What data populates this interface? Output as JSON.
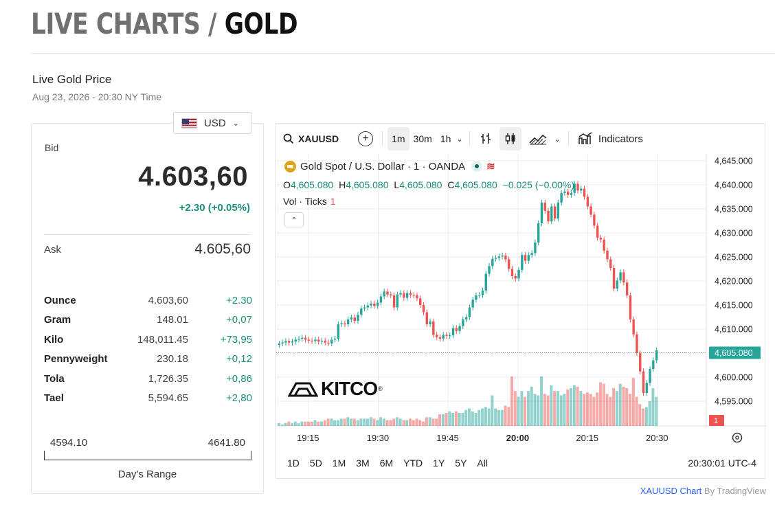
{
  "header": {
    "title_part1": "LIVE CHARTS / ",
    "title_part2": "GOLD"
  },
  "live_price": {
    "heading": "Live Gold Price",
    "datetime": "Aug 23, 2026 - 20:30 NY Time"
  },
  "currency_selector": {
    "value": "USD",
    "flag_icon": "us-flag-icon"
  },
  "bid": {
    "label": "Bid",
    "value": "4.603,60",
    "change": "+2.30 (+0.05%)"
  },
  "ask": {
    "label": "Ask",
    "value": "4.605,60"
  },
  "units": [
    {
      "name": "Ounce",
      "price": "4.603,60",
      "change": "+2.30"
    },
    {
      "name": "Gram",
      "price": "148.01",
      "change": "+0,07"
    },
    {
      "name": "Kilo",
      "price": "148,011.45",
      "change": "+73,95"
    },
    {
      "name": "Pennyweight",
      "price": "230.18",
      "change": "+0,12"
    },
    {
      "name": "Tola",
      "price": "1,726.35",
      "change": "+0,86"
    },
    {
      "name": "Tael",
      "price": "5,594.65",
      "change": "+2,80"
    }
  ],
  "days_range": {
    "low": "4594.10",
    "high": "4641.80",
    "label": "Day's Range"
  },
  "toolbar": {
    "symbol": "XAUUSD",
    "intervals": [
      "1m",
      "30m",
      "1h"
    ],
    "active_interval": "1m",
    "indicators_label": "Indicators"
  },
  "legend": {
    "title": "Gold Spot / U.S. Dollar · 1 · OANDA",
    "o_label": "O",
    "o_value": "4,605.080",
    "h_label": "H",
    "h_value": "4,605.080",
    "l_label": "L",
    "l_value": "4,605.080",
    "c_label": "C",
    "c_value": "4,605.080",
    "change": "−0.025 (−0.00%)",
    "vol_label": "Vol · Ticks",
    "vol_value": "1"
  },
  "watermark": {
    "brand": "KITCO",
    "reg": "®"
  },
  "range_tabs": [
    "1D",
    "5D",
    "1M",
    "3M",
    "6M",
    "YTD",
    "1Y",
    "5Y",
    "All"
  ],
  "clock": "20:30:01 UTC-4",
  "credit": {
    "link": "XAUUSD Chart",
    "rest": " By TradingView"
  },
  "colors": {
    "up": "#26a69a",
    "down": "#ef5350",
    "accent": "#1a8f78"
  },
  "chart_data": {
    "type": "candlestick",
    "symbol": "XAUUSD",
    "interval": "1 minute",
    "y_ticks": [
      "4,645.000",
      "4,640.000",
      "4,635.000",
      "4,630.000",
      "4,625.000",
      "4,620.000",
      "4,615.000",
      "4,610.000",
      "4,605.000",
      "4,600.000",
      "4,595.000"
    ],
    "ylim": [
      4590,
      4647
    ],
    "x_ticks": [
      "19:15",
      "19:30",
      "19:45",
      "20:00",
      "20:15",
      "20:30"
    ],
    "last_price": "4,605.080",
    "volume_badge": "1",
    "candles_close": [
      4607.0,
      4607.2,
      4607.5,
      4607.2,
      4607.4,
      4607.8,
      4608.0,
      4608.2,
      4607.8,
      4607.6,
      4607.5,
      4607.8,
      4607.4,
      4607.6,
      4607.2,
      4607.0,
      4607.8,
      4608.0,
      4611.0,
      4611.2,
      4611.0,
      4612.0,
      4612.4,
      4611.7,
      4613.0,
      4614.3,
      4614.5,
      4614.9,
      4615.3,
      4614.8,
      4615.5,
      4616.8,
      4617.8,
      4617.2,
      4617.0,
      4614.5,
      4617.2,
      4617.5,
      4616.5,
      4617.5,
      4617.1,
      4617.0,
      4616.4,
      4615.0,
      4613.5,
      4611.0,
      4611.6,
      4608.8,
      4608.3,
      4608.0,
      4608.8,
      4608.6,
      4608.7,
      4610.2,
      4609.6,
      4610.6,
      4612.0,
      4612.5,
      4614.5,
      4616.1,
      4617.0,
      4617.1,
      4618.0,
      4621.5,
      4623.1,
      4624.6,
      4624.8,
      4625.1,
      4625.3,
      4624.5,
      4622.5,
      4621.0,
      4620.5,
      4622.3,
      4625.4,
      4624.2,
      4625.4,
      4625.8,
      4628.0,
      4632.0,
      4636.3,
      4634.6,
      4632.4,
      4635.5,
      4633.0,
      4636.3,
      4638.3,
      4638.6,
      4637.9,
      4638.3,
      4640.2,
      4638.8,
      4639.2,
      4637.5,
      4635.5,
      4633.8,
      4631.5,
      4629.0,
      4628.6,
      4626.3,
      4624.5,
      4622.7,
      4618.4,
      4620.1,
      4621.8,
      4619.7,
      4617.0,
      4612.0,
      4608.9,
      4605.0,
      4601.2,
      4596.7,
      4598.8,
      4601.7,
      4603.5,
      4605.6
    ],
    "volumes": [
      2,
      1,
      2,
      3,
      2,
      3,
      2,
      3,
      3,
      3,
      3,
      4,
      3,
      3,
      4,
      5,
      5,
      4,
      4,
      5,
      5,
      6,
      5,
      5,
      4,
      5,
      5,
      5,
      6,
      5,
      4,
      6,
      5,
      4,
      4,
      5,
      6,
      5,
      4,
      4,
      5,
      4,
      5,
      4,
      3,
      6,
      6,
      5,
      5,
      8,
      8,
      9,
      10,
      9,
      10,
      9,
      9,
      11,
      12,
      10,
      9,
      11,
      12,
      13,
      12,
      21,
      12,
      11,
      11,
      14,
      13,
      34,
      24,
      20,
      24,
      20,
      24,
      27,
      22,
      21,
      34,
      22,
      21,
      28,
      24,
      24,
      21,
      22,
      25,
      26,
      28,
      27,
      24,
      22,
      23,
      22,
      20,
      23,
      30,
      29,
      22,
      20,
      26,
      24,
      29,
      27,
      26,
      22,
      33,
      20,
      15,
      12,
      13,
      17,
      26,
      20
    ]
  }
}
